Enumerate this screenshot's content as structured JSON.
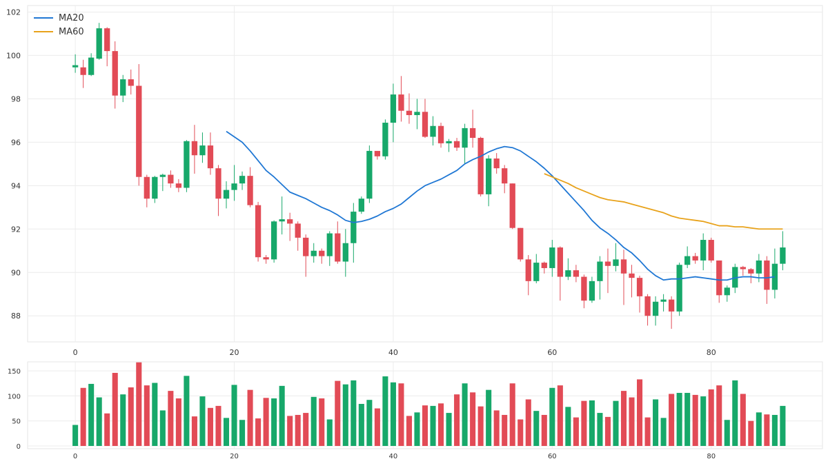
{
  "chart_data": [
    {
      "type": "candlestick",
      "title": "",
      "xlabel": "",
      "ylabel": "",
      "xlim": [
        -6,
        94
      ],
      "ylim": [
        86.8,
        102.3
      ],
      "xticks": [
        0,
        20,
        40,
        60,
        80
      ],
      "yticks": [
        88,
        90,
        92,
        94,
        96,
        98,
        100,
        102
      ],
      "grid": true,
      "legend_position": "top-left",
      "up_color": "#17a86a",
      "down_color": "#e24b56",
      "candles": [
        [
          99.45,
          99.55,
          99.2,
          100.05
        ],
        [
          99.45,
          99.1,
          98.5,
          99.8
        ],
        [
          99.1,
          99.9,
          99.05,
          100.1
        ],
        [
          99.85,
          101.25,
          99.8,
          101.5
        ],
        [
          101.25,
          100.2,
          99.5,
          101.3
        ],
        [
          100.2,
          98.15,
          97.55,
          100.65
        ],
        [
          98.15,
          98.9,
          97.85,
          99.1
        ],
        [
          98.9,
          98.6,
          98.2,
          99.35
        ],
        [
          98.6,
          94.4,
          94.0,
          99.6
        ],
        [
          94.4,
          93.4,
          93.0,
          94.5
        ],
        [
          93.4,
          94.4,
          93.2,
          94.45
        ],
        [
          94.4,
          94.5,
          93.75,
          94.55
        ],
        [
          94.5,
          94.1,
          93.9,
          94.7
        ],
        [
          94.1,
          93.9,
          93.7,
          94.3
        ],
        [
          93.9,
          96.05,
          93.7,
          96.1
        ],
        [
          96.05,
          95.4,
          94.55,
          96.8
        ],
        [
          95.4,
          95.85,
          95.05,
          96.45
        ],
        [
          95.85,
          94.8,
          94.5,
          96.45
        ],
        [
          94.8,
          93.4,
          92.6,
          94.95
        ],
        [
          93.4,
          93.8,
          92.95,
          94.2
        ],
        [
          93.8,
          94.1,
          93.3,
          94.95
        ],
        [
          94.1,
          94.45,
          93.8,
          94.65
        ],
        [
          94.45,
          93.1,
          93.0,
          94.85
        ],
        [
          93.1,
          90.7,
          90.5,
          93.25
        ],
        [
          90.7,
          90.6,
          90.4,
          90.8
        ],
        [
          90.6,
          92.35,
          90.45,
          92.4
        ],
        [
          92.35,
          92.45,
          91.75,
          93.5
        ],
        [
          92.45,
          92.25,
          91.45,
          92.75
        ],
        [
          92.25,
          91.6,
          91.0,
          92.35
        ],
        [
          91.6,
          90.75,
          89.8,
          91.75
        ],
        [
          90.75,
          91.0,
          90.45,
          91.35
        ],
        [
          91.0,
          90.75,
          90.4,
          91.1
        ],
        [
          90.75,
          91.8,
          90.3,
          91.9
        ],
        [
          91.8,
          90.5,
          90.4,
          92.35
        ],
        [
          90.5,
          91.35,
          89.8,
          92.0
        ],
        [
          91.35,
          92.8,
          90.45,
          93.2
        ],
        [
          92.8,
          93.4,
          92.7,
          93.5
        ],
        [
          93.4,
          95.6,
          93.2,
          95.85
        ],
        [
          95.6,
          95.35,
          95.2,
          95.6
        ],
        [
          95.35,
          96.9,
          95.2,
          97.05
        ],
        [
          96.9,
          98.2,
          96.0,
          98.7
        ],
        [
          98.2,
          97.45,
          96.95,
          99.05
        ],
        [
          97.45,
          97.25,
          96.85,
          98.25
        ],
        [
          97.25,
          97.4,
          96.6,
          98.0
        ],
        [
          97.4,
          96.25,
          96.2,
          98.0
        ],
        [
          96.25,
          96.75,
          95.85,
          97.2
        ],
        [
          96.75,
          95.95,
          95.75,
          96.9
        ],
        [
          95.95,
          96.05,
          95.55,
          96.15
        ],
        [
          96.05,
          95.75,
          95.6,
          96.2
        ],
        [
          95.75,
          96.65,
          95.0,
          96.85
        ],
        [
          96.65,
          96.2,
          95.75,
          97.5
        ],
        [
          96.2,
          93.6,
          93.5,
          96.25
        ],
        [
          93.6,
          95.25,
          93.05,
          95.4
        ],
        [
          95.25,
          94.8,
          94.55,
          95.5
        ],
        [
          94.8,
          94.1,
          93.65,
          94.95
        ],
        [
          94.1,
          92.05,
          92.0,
          94.1
        ],
        [
          92.05,
          90.6,
          90.5,
          92.05
        ],
        [
          90.6,
          89.6,
          88.95,
          90.8
        ],
        [
          89.6,
          90.45,
          89.5,
          90.85
        ],
        [
          90.45,
          90.2,
          89.95,
          90.5
        ],
        [
          90.2,
          91.15,
          89.8,
          91.5
        ],
        [
          91.15,
          89.8,
          88.7,
          91.2
        ],
        [
          89.8,
          90.1,
          89.65,
          90.65
        ],
        [
          90.1,
          89.8,
          89.55,
          90.35
        ],
        [
          89.8,
          88.7,
          88.35,
          89.9
        ],
        [
          88.7,
          89.6,
          88.6,
          89.8
        ],
        [
          89.6,
          90.5,
          88.75,
          90.75
        ],
        [
          90.5,
          90.3,
          89.05,
          91.1
        ],
        [
          90.3,
          90.6,
          90.05,
          91.35
        ],
        [
          90.6,
          89.95,
          88.5,
          91.05
        ],
        [
          89.95,
          89.75,
          88.85,
          90.35
        ],
        [
          89.75,
          88.9,
          88.15,
          89.85
        ],
        [
          88.9,
          88.0,
          87.55,
          89.0
        ],
        [
          88.0,
          88.65,
          87.55,
          88.9
        ],
        [
          88.65,
          88.75,
          88.2,
          89.0
        ],
        [
          88.75,
          88.2,
          87.4,
          88.9
        ],
        [
          88.2,
          90.35,
          88.0,
          90.45
        ],
        [
          90.35,
          90.75,
          90.2,
          91.2
        ],
        [
          90.75,
          90.55,
          90.4,
          90.9
        ],
        [
          90.55,
          91.5,
          90.1,
          91.8
        ],
        [
          91.5,
          90.55,
          90.45,
          91.6
        ],
        [
          90.55,
          88.95,
          88.6,
          90.55
        ],
        [
          88.95,
          89.3,
          88.65,
          89.4
        ],
        [
          89.3,
          90.25,
          89.05,
          90.4
        ],
        [
          90.25,
          90.15,
          89.85,
          90.3
        ],
        [
          90.15,
          89.95,
          89.5,
          90.2
        ],
        [
          89.95,
          90.55,
          89.55,
          90.85
        ],
        [
          90.55,
          89.2,
          88.55,
          90.75
        ],
        [
          89.2,
          90.4,
          88.8,
          91.1
        ],
        [
          90.4,
          91.15,
          90.1,
          91.9
        ]
      ],
      "series": [
        {
          "name": "MA20",
          "color": "#1f77d4",
          "x_start": 19,
          "values": [
            96.5,
            96.25,
            96.0,
            95.6,
            95.15,
            94.7,
            94.4,
            94.05,
            93.7,
            93.55,
            93.4,
            93.2,
            93.0,
            92.85,
            92.65,
            92.4,
            92.3,
            92.35,
            92.45,
            92.6,
            92.8,
            92.95,
            93.15,
            93.45,
            93.75,
            94.0,
            94.15,
            94.3,
            94.5,
            94.7,
            95.0,
            95.2,
            95.35,
            95.55,
            95.7,
            95.8,
            95.75,
            95.6,
            95.35,
            95.1,
            94.8,
            94.45,
            94.05,
            93.65,
            93.25,
            92.85,
            92.4,
            92.05,
            91.8,
            91.5,
            91.15,
            90.9,
            90.55,
            90.15,
            89.85,
            89.65,
            89.7,
            89.7,
            89.75,
            89.8,
            89.75,
            89.7,
            89.65,
            89.65,
            89.75,
            89.8,
            89.8,
            89.75,
            89.75,
            89.8
          ]
        },
        {
          "name": "MA60",
          "color": "#e8a21a",
          "x_start": 59,
          "values": [
            94.55,
            94.4,
            94.25,
            94.1,
            93.9,
            93.75,
            93.6,
            93.45,
            93.35,
            93.3,
            93.25,
            93.15,
            93.05,
            92.95,
            92.85,
            92.75,
            92.6,
            92.5,
            92.45,
            92.4,
            92.35,
            92.25,
            92.15,
            92.15,
            92.1,
            92.1,
            92.05,
            92.0,
            92.0,
            92.0,
            92.0
          ]
        }
      ]
    },
    {
      "type": "bar",
      "title": "",
      "xlabel": "",
      "ylabel": "",
      "xlim": [
        -6,
        94
      ],
      "ylim": [
        0,
        168
      ],
      "xticks": [
        0,
        20,
        40,
        60,
        80
      ],
      "yticks": [
        0,
        50,
        100,
        150
      ],
      "grid": true,
      "up_color": "#17a86a",
      "down_color": "#e24b56",
      "values": [
        42,
        116,
        124,
        97,
        65,
        146,
        103,
        117,
        167,
        121,
        126,
        71,
        110,
        95,
        140,
        59,
        99,
        76,
        80,
        56,
        122,
        52,
        112,
        55,
        96,
        95,
        120,
        60,
        62,
        66,
        98,
        95,
        53,
        130,
        123,
        131,
        84,
        92,
        75,
        139,
        127,
        125,
        60,
        67,
        81,
        80,
        85,
        66,
        103,
        125,
        107,
        79,
        112,
        71,
        62,
        125,
        53,
        93,
        70,
        62,
        116,
        121,
        78,
        57,
        90,
        91,
        66,
        58,
        90,
        110,
        97,
        133,
        57,
        93,
        56,
        104,
        106,
        106,
        102,
        99,
        113,
        121,
        52,
        131,
        104,
        50,
        67,
        63,
        62,
        80
      ]
    }
  ]
}
